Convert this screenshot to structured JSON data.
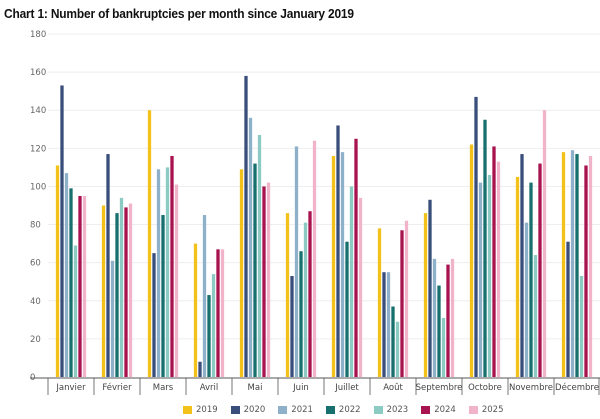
{
  "chart_data": {
    "type": "bar",
    "title": "Chart 1: Number of bankruptcies per month since January 2019",
    "xlabel": "",
    "ylabel": "",
    "ylim": [
      0,
      180
    ],
    "yticks": [
      0,
      20,
      40,
      60,
      80,
      100,
      120,
      140,
      160,
      180
    ],
    "grid": true,
    "legend_position": "bottom",
    "categories": [
      "Janvier",
      "Février",
      "Mars",
      "Avril",
      "Mai",
      "Juin",
      "Juillet",
      "Août",
      "Septembre",
      "Octobre",
      "Novembre",
      "Décembre"
    ],
    "series": [
      {
        "name": "2019",
        "color": "#f2c21b",
        "values": [
          111,
          90,
          140,
          70,
          109,
          86,
          116,
          78,
          86,
          122,
          105,
          118
        ]
      },
      {
        "name": "2020",
        "color": "#3a4e7c",
        "values": [
          153,
          117,
          65,
          8,
          158,
          53,
          132,
          55,
          93,
          147,
          117,
          71
        ]
      },
      {
        "name": "2021",
        "color": "#8fb0c9",
        "values": [
          107,
          61,
          109,
          85,
          136,
          121,
          118,
          55,
          62,
          102,
          81,
          119
        ]
      },
      {
        "name": "2022",
        "color": "#17706e",
        "values": [
          99,
          86,
          85,
          43,
          112,
          66,
          71,
          37,
          48,
          135,
          102,
          117
        ]
      },
      {
        "name": "2023",
        "color": "#8ccbc4",
        "values": [
          69,
          94,
          110,
          54,
          127,
          81,
          100,
          29,
          31,
          106,
          64,
          53
        ]
      },
      {
        "name": "2024",
        "color": "#a8124f",
        "values": [
          95,
          89,
          116,
          67,
          100,
          87,
          125,
          77,
          59,
          121,
          112,
          111
        ]
      },
      {
        "name": "2025",
        "color": "#f0b3c9",
        "values": [
          95,
          91,
          101,
          67,
          102,
          124,
          94,
          82,
          62,
          113,
          140,
          116
        ]
      }
    ]
  }
}
